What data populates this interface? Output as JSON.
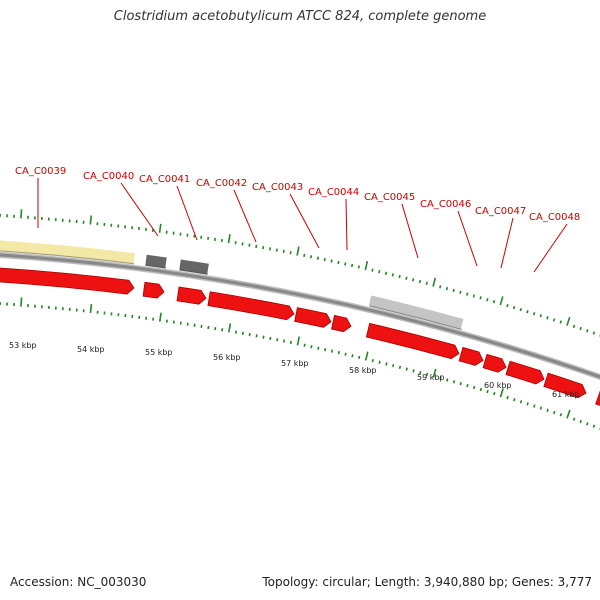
{
  "title": "Clostridium acetobutylicum ATCC 824, complete genome",
  "footer": {
    "accession": "Accession: NC_003030",
    "topology": "Topology: circular; Length: 3,940,880 bp; Genes: 3,777"
  },
  "colors": {
    "gene": "#ee1111",
    "label": "#cc0000",
    "tick": "#228822",
    "backbone": "#888888",
    "feature_yellow": "#f3e8a5",
    "feature_darkgray": "#666666",
    "feature_lightgray": "#c4c4c4"
  },
  "gene_labels": [
    "CA_C0039",
    "CA_C0040",
    "CA_C0041",
    "CA_C0042",
    "CA_C0043",
    "CA_C0044",
    "CA_C0045",
    "CA_C0046",
    "CA_C0047",
    "CA_C0048"
  ],
  "kbp_labels": [
    "53 kbp",
    "54 kbp",
    "55 kbp",
    "56 kbp",
    "57 kbp",
    "58 kbp",
    "59 kbp",
    "60 kbp",
    "61 kbp"
  ]
}
